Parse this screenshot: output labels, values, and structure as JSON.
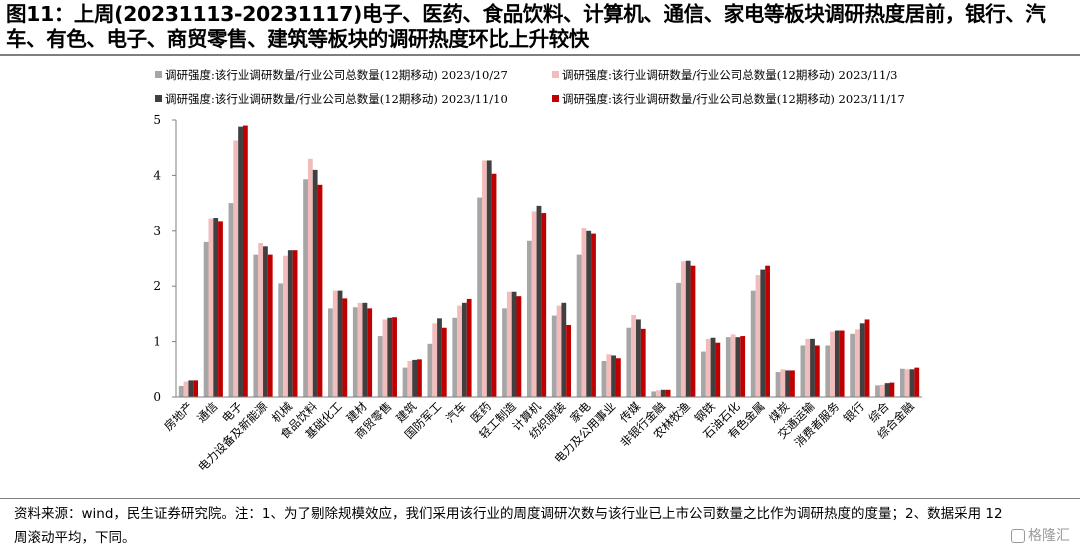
{
  "title": "图11：上周(20231113-20231117)电子、医药、食品饮料、计算机、通信、家电等板块调研热度居前，银行、汽车、有色、电子、商贸零售、建筑等板块的调研热度环比上升较快",
  "note": "资料来源：wind，民生证券研究院。注：1、为了剔除规模效应，我们采用该行业的周度调研次数与该行业已上市公司数量之比作为调研热度的度量；2、数据采用 12 周滚动平均，下同。",
  "watermark": "格隆汇",
  "chart_data": {
    "type": "bar",
    "ylim": [
      0,
      5
    ],
    "yticks": [
      "0",
      "1",
      "2",
      "3",
      "4",
      "5"
    ],
    "legend_position": "top",
    "categories": [
      "房地产",
      "通信",
      "电子",
      "电力设备及新能源",
      "机械",
      "食品饮料",
      "基础化工",
      "建材",
      "商贸零售",
      "建筑",
      "国防军工",
      "汽车",
      "医药",
      "轻工制造",
      "计算机",
      "纺织服装",
      "家电",
      "电力及公用事业",
      "传媒",
      "非银行金融",
      "农林牧渔",
      "钢铁",
      "石油石化",
      "有色金属",
      "煤炭",
      "交通运输",
      "消费者服务",
      "银行",
      "综合",
      "综合金融"
    ],
    "series": [
      {
        "name": "调研强度:该行业调研数量/行业公司总数量(12期移动) 2023/10/27",
        "color": "#a6a6a6",
        "values": [
          0.2,
          2.8,
          3.5,
          2.57,
          2.05,
          3.93,
          1.6,
          1.62,
          1.1,
          0.53,
          0.96,
          1.43,
          3.6,
          1.6,
          2.82,
          1.47,
          2.57,
          0.65,
          1.25,
          0.1,
          2.06,
          0.82,
          1.08,
          1.92,
          0.45,
          0.93,
          0.93,
          1.14,
          0.21,
          0.51
        ]
      },
      {
        "name": "调研强度:该行业调研数量/行业公司总数量(12期移动) 2023/11/3",
        "color": "#f2bcbc",
        "values": [
          0.28,
          3.22,
          4.63,
          2.78,
          2.55,
          4.3,
          1.92,
          1.7,
          1.4,
          0.65,
          1.33,
          1.65,
          4.27,
          1.9,
          3.35,
          1.65,
          3.05,
          0.77,
          1.48,
          0.12,
          2.45,
          1.05,
          1.13,
          2.2,
          0.5,
          1.05,
          1.18,
          1.22,
          0.22,
          0.5
        ]
      },
      {
        "name": "调研强度:该行业调研数量/行业公司总数量(12期移动) 2023/11/10",
        "color": "#404040",
        "values": [
          0.3,
          3.23,
          4.88,
          2.72,
          2.65,
          4.1,
          1.92,
          1.7,
          1.43,
          0.67,
          1.42,
          1.7,
          4.27,
          1.9,
          3.45,
          1.7,
          3.0,
          0.75,
          1.4,
          0.13,
          2.46,
          1.07,
          1.08,
          2.3,
          0.48,
          1.05,
          1.2,
          1.33,
          0.25,
          0.5
        ]
      },
      {
        "name": "调研强度:该行业调研数量/行业公司总数量(12期移动) 2023/11/17",
        "color": "#c00000",
        "values": [
          0.3,
          3.17,
          4.9,
          2.57,
          2.65,
          3.83,
          1.78,
          1.6,
          1.44,
          0.68,
          1.25,
          1.77,
          4.03,
          1.82,
          3.32,
          1.3,
          2.95,
          0.7,
          1.23,
          0.13,
          2.37,
          0.98,
          1.1,
          2.37,
          0.48,
          0.93,
          1.2,
          1.4,
          0.26,
          0.53
        ]
      }
    ]
  }
}
